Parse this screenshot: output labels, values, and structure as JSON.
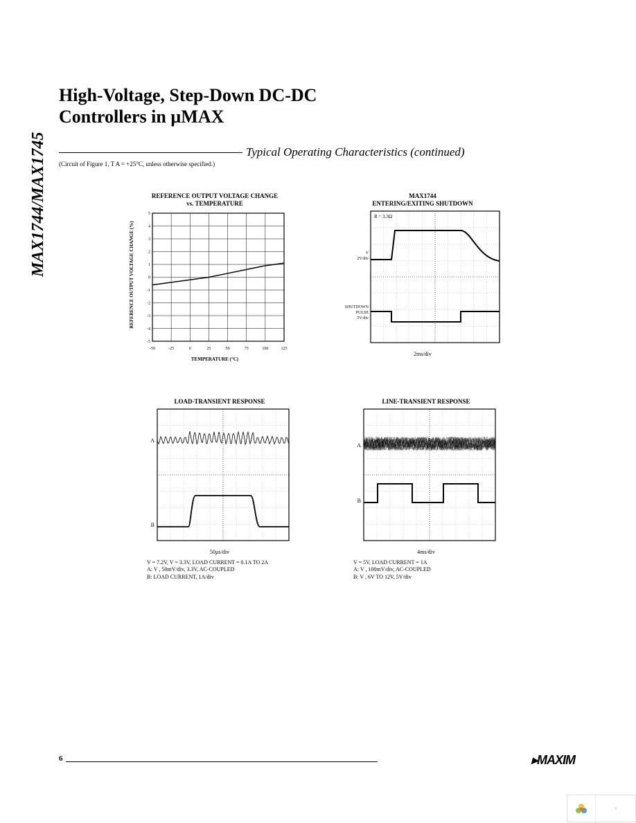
{
  "page": {
    "title_line1": "High-Voltage, Step-Down DC-DC",
    "title_line2": "Controllers in µMAX",
    "section_title": "Typical Operating Characteristics (continued)",
    "conditions": "(Circuit of Figure 1, T      A = +25°C, unless otherwise specified.)",
    "side_label": "MAX1744/MAX1745",
    "page_number": "6",
    "logo": "MAXIM"
  },
  "chart1": {
    "title_line1": "REFERENCE OUTPUT VOLTAGE CHANGE",
    "title_line2": "vs. TEMPERATURE",
    "ylabel": "REFERENCE OUTPUT VOLTAGE CHANGE (%)",
    "xlabel": "TEMPERATURE (°C)",
    "x_ticks": [
      "-50",
      "-25",
      "0",
      "25",
      "50",
      "75",
      "100",
      "125"
    ],
    "y_ticks": [
      "-5",
      "-4",
      "-3",
      "-2",
      "-1",
      "0",
      "1",
      "2",
      "3",
      "4",
      "5"
    ],
    "xlim": [
      -50,
      125
    ],
    "ylim": [
      -5,
      5
    ],
    "data_x": [
      -50,
      -25,
      0,
      25,
      50,
      75,
      100,
      125
    ],
    "data_y": [
      -0.6,
      -0.4,
      -0.2,
      0.0,
      0.3,
      0.6,
      0.9,
      1.1
    ],
    "line_color": "#000000",
    "grid_color": "#000000",
    "bg_color": "#ffffff"
  },
  "chart2": {
    "title_line1": "MAX1744",
    "title_line2": "ENTERING/EXITING SHUTDOWN",
    "condition": "R  = 3.3Ω",
    "trace1_label1": "V",
    "trace1_label2": "2V/div",
    "trace2_label1": "SHUTDOWN",
    "trace2_label2": "PULSE",
    "trace2_label3": "5V/div",
    "x_caption": "2ms/div",
    "border_color": "#000000",
    "grid_color": "#cccccc"
  },
  "chart3": {
    "title": "LOAD-TRANSIENT RESPONSE",
    "label_a": "A",
    "label_b": "B",
    "x_caption": "50µs/div",
    "note1": "V  = 7.2V, V    = 3.3V, LOAD CURRENT = 0.1A TO 2A",
    "note2": "A: V   , 50mV/div, 3.3V, AC-COUPLED",
    "note3": "B: LOAD CURRENT, 1A/div",
    "border_color": "#000000"
  },
  "chart4": {
    "title": "LINE-TRANSIENT RESPONSE",
    "label_a": "A",
    "label_b": "B",
    "x_caption": "4ms/div",
    "note1": "V    = 5V, LOAD CURRENT = 1A",
    "note2": "A: V   , 100mV/div, AC-COUPLED",
    "note3": "B: V  , 6V TO 12V, 5V/div",
    "border_color": "#000000"
  }
}
